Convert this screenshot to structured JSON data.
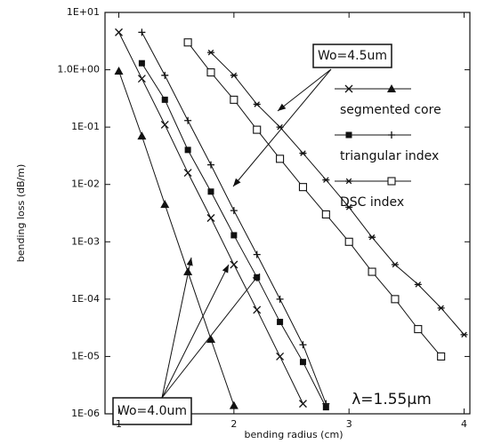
{
  "chart_data": {
    "type": "line",
    "xlabel": "bending radius (cm)",
    "ylabel": "bending loss (dB/m)",
    "log_y": true,
    "xlim": [
      0.88,
      4.05
    ],
    "ylim": [
      1e-06,
      10
    ],
    "xticks": [
      1,
      2,
      3,
      4
    ],
    "yticks": [
      {
        "value": 10,
        "label": "1E+01"
      },
      {
        "value": 1,
        "label": "1.0E+00"
      },
      {
        "value": 0.1,
        "label": "1E-01"
      },
      {
        "value": 0.01,
        "label": "1E-02"
      },
      {
        "value": 0.001,
        "label": "1E-03"
      },
      {
        "value": 0.0001,
        "label": "1E-04"
      },
      {
        "value": 1e-05,
        "label": "1E-05"
      },
      {
        "value": 1e-06,
        "label": "1E-06"
      }
    ],
    "color": "#111111",
    "series": [
      {
        "name": "segmented core",
        "curves": [
          {
            "marker": "x",
            "x": [
              1.0,
              1.2,
              1.4,
              1.6,
              1.8,
              2.0,
              2.2,
              2.4,
              2.6
            ],
            "values": [
              4.5,
              0.7,
              0.11,
              0.016,
              0.0026,
              0.0004,
              6.5e-05,
              1e-05,
              1.5e-06
            ]
          },
          {
            "marker": "triangle",
            "x": [
              1.0,
              1.2,
              1.4,
              1.6,
              1.8,
              2.0
            ],
            "values": [
              0.95,
              0.07,
              0.0045,
              0.0003,
              2e-05,
              1.4e-06
            ]
          }
        ]
      },
      {
        "name": "triangular index",
        "curves": [
          {
            "marker": "square",
            "x": [
              1.2,
              1.4,
              1.6,
              1.8,
              2.0,
              2.2,
              2.4,
              2.6,
              2.8
            ],
            "values": [
              1.3,
              0.3,
              0.04,
              0.0075,
              0.0013,
              0.00024,
              4e-05,
              8e-06,
              1.3e-06
            ]
          },
          {
            "marker": "plus",
            "x": [
              1.2,
              1.4,
              1.6,
              1.8,
              2.0,
              2.2,
              2.4,
              2.6,
              2.8
            ],
            "values": [
              4.5,
              0.8,
              0.13,
              0.022,
              0.0035,
              0.0006,
              0.0001,
              1.6e-05,
              1.5e-06
            ]
          }
        ]
      },
      {
        "name": "DSC index",
        "curves": [
          {
            "marker": "star",
            "x": [
              1.8,
              2.0,
              2.2,
              2.4,
              2.6,
              2.8,
              3.0,
              3.2,
              3.4,
              3.6,
              3.8,
              4.0
            ],
            "values": [
              2,
              0.8,
              0.25,
              0.1,
              0.035,
              0.012,
              0.004,
              0.0012,
              0.0004,
              0.00018,
              7e-05,
              2.4e-05
            ]
          },
          {
            "marker": "open-square",
            "x": [
              1.6,
              1.8,
              2.0,
              2.2,
              2.4,
              2.6,
              2.8,
              3.0,
              3.2,
              3.4,
              3.6,
              3.8
            ],
            "values": [
              3,
              0.9,
              0.3,
              0.09,
              0.028,
              0.009,
              0.003,
              0.001,
              0.0003,
              0.0001,
              3e-05,
              1e-05
            ]
          }
        ]
      }
    ],
    "annotations": [
      "Wo=4.5um",
      "Wo=4.0um",
      "λ=1.55μm"
    ]
  }
}
